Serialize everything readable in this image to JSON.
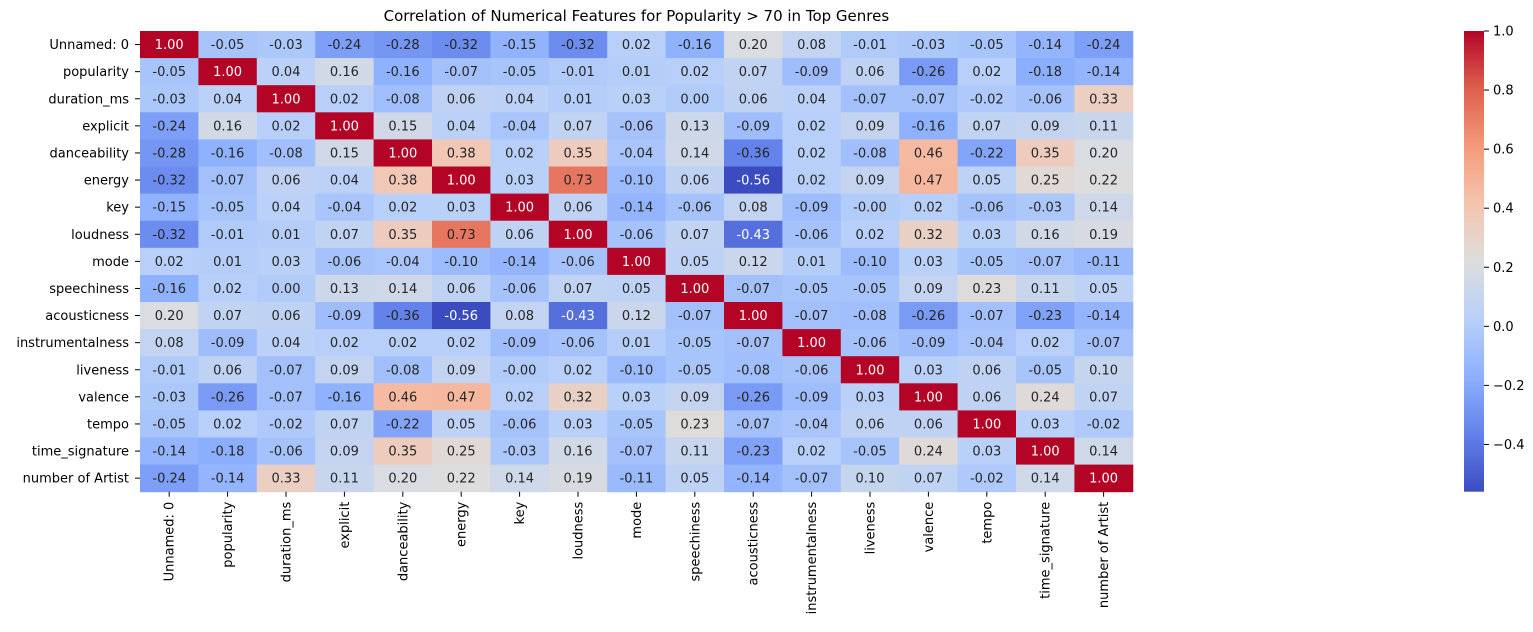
{
  "chart_data": {
    "type": "heatmap",
    "title": "Correlation of Numerical Features for Popularity > 70 in Top Genres",
    "variables": [
      "Unnamed: 0",
      "popularity",
      "duration_ms",
      "explicit",
      "danceability",
      "energy",
      "key",
      "loudness",
      "mode",
      "speechiness",
      "acousticness",
      "instrumentalness",
      "liveness",
      "valence",
      "tempo",
      "time_signature",
      "number of Artist"
    ],
    "values": [
      [
        1.0,
        -0.05,
        -0.03,
        -0.24,
        -0.28,
        -0.32,
        -0.15,
        -0.32,
        0.02,
        -0.16,
        0.2,
        0.08,
        -0.01,
        -0.03,
        -0.05,
        -0.14,
        -0.24
      ],
      [
        -0.05,
        1.0,
        0.04,
        0.16,
        -0.16,
        -0.07,
        -0.05,
        -0.01,
        0.01,
        0.02,
        0.07,
        -0.09,
        0.06,
        -0.26,
        0.02,
        -0.18,
        -0.14
      ],
      [
        -0.03,
        0.04,
        1.0,
        0.02,
        -0.08,
        0.06,
        0.04,
        0.01,
        0.03,
        0.0,
        0.06,
        0.04,
        -0.07,
        -0.07,
        -0.02,
        -0.06,
        0.33
      ],
      [
        -0.24,
        0.16,
        0.02,
        1.0,
        0.15,
        0.04,
        -0.04,
        0.07,
        -0.06,
        0.13,
        -0.09,
        0.02,
        0.09,
        -0.16,
        0.07,
        0.09,
        0.11
      ],
      [
        -0.28,
        -0.16,
        -0.08,
        0.15,
        1.0,
        0.38,
        0.02,
        0.35,
        -0.04,
        0.14,
        -0.36,
        0.02,
        -0.08,
        0.46,
        -0.22,
        0.35,
        0.2
      ],
      [
        -0.32,
        -0.07,
        0.06,
        0.04,
        0.38,
        1.0,
        0.03,
        0.73,
        -0.1,
        0.06,
        -0.56,
        0.02,
        0.09,
        0.47,
        0.05,
        0.25,
        0.22
      ],
      [
        -0.15,
        -0.05,
        0.04,
        -0.04,
        0.02,
        0.03,
        1.0,
        0.06,
        -0.14,
        -0.06,
        0.08,
        -0.09,
        -0.0,
        0.02,
        -0.06,
        -0.03,
        0.14
      ],
      [
        -0.32,
        -0.01,
        0.01,
        0.07,
        0.35,
        0.73,
        0.06,
        1.0,
        -0.06,
        0.07,
        -0.43,
        -0.06,
        0.02,
        0.32,
        0.03,
        0.16,
        0.19
      ],
      [
        0.02,
        0.01,
        0.03,
        -0.06,
        -0.04,
        -0.1,
        -0.14,
        -0.06,
        1.0,
        0.05,
        0.12,
        0.01,
        -0.1,
        0.03,
        -0.05,
        -0.07,
        -0.11
      ],
      [
        -0.16,
        0.02,
        0.0,
        0.13,
        0.14,
        0.06,
        -0.06,
        0.07,
        0.05,
        1.0,
        -0.07,
        -0.05,
        -0.05,
        0.09,
        0.23,
        0.11,
        0.05
      ],
      [
        0.2,
        0.07,
        0.06,
        -0.09,
        -0.36,
        -0.56,
        0.08,
        -0.43,
        0.12,
        -0.07,
        1.0,
        -0.07,
        -0.08,
        -0.26,
        -0.07,
        -0.23,
        -0.14
      ],
      [
        0.08,
        -0.09,
        0.04,
        0.02,
        0.02,
        0.02,
        -0.09,
        -0.06,
        0.01,
        -0.05,
        -0.07,
        1.0,
        -0.06,
        -0.09,
        -0.04,
        0.02,
        -0.07
      ],
      [
        -0.01,
        0.06,
        -0.07,
        0.09,
        -0.08,
        0.09,
        -0.0,
        0.02,
        -0.1,
        -0.05,
        -0.08,
        -0.06,
        1.0,
        0.03,
        0.06,
        -0.05,
        0.1
      ],
      [
        -0.03,
        -0.26,
        -0.07,
        -0.16,
        0.46,
        0.47,
        0.02,
        0.32,
        0.03,
        0.09,
        -0.26,
        -0.09,
        0.03,
        1.0,
        0.06,
        0.24,
        0.07
      ],
      [
        -0.05,
        0.02,
        -0.02,
        0.07,
        -0.22,
        0.05,
        -0.06,
        0.03,
        -0.05,
        0.23,
        -0.07,
        -0.04,
        0.06,
        0.06,
        1.0,
        0.03,
        -0.02
      ],
      [
        -0.14,
        -0.18,
        -0.06,
        0.09,
        0.35,
        0.25,
        -0.03,
        0.16,
        -0.07,
        0.11,
        -0.23,
        0.02,
        -0.05,
        0.24,
        0.03,
        1.0,
        0.14
      ],
      [
        -0.24,
        -0.14,
        0.33,
        0.11,
        0.2,
        0.22,
        0.14,
        0.19,
        -0.11,
        0.05,
        -0.14,
        -0.07,
        0.1,
        0.07,
        -0.02,
        0.14,
        1.0
      ]
    ],
    "colormap": "coolwarm",
    "vmin": -0.56,
    "vmax": 1.0,
    "colorbar_ticks": [
      1.0,
      0.8,
      0.6,
      0.4,
      0.2,
      0.0,
      -0.2,
      -0.4
    ],
    "colorbar_tick_labels": [
      "1.0",
      "0.8",
      "0.6",
      "0.4",
      "0.2",
      "0.0",
      "−0.2",
      "−0.4"
    ],
    "annotation_format": "0.00"
  }
}
